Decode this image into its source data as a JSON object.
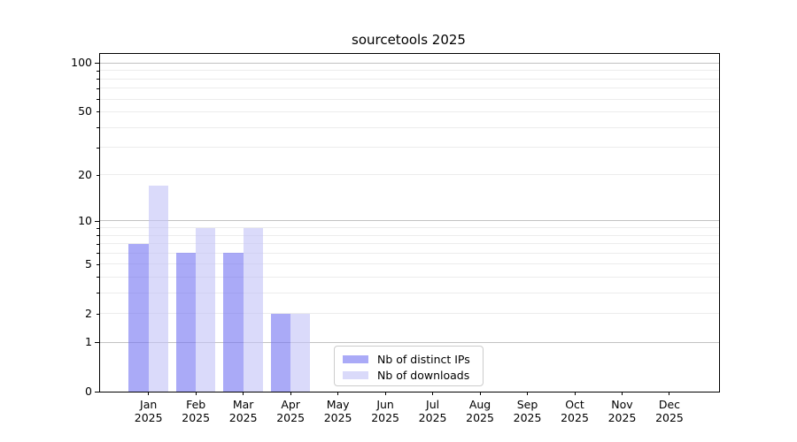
{
  "title": "sourcetools 2025",
  "chart_data": {
    "type": "bar",
    "title": "sourcetools 2025",
    "year": "2025",
    "categories": [
      "Jan",
      "Feb",
      "Mar",
      "Apr",
      "May",
      "Jun",
      "Jul",
      "Aug",
      "Sep",
      "Oct",
      "Nov",
      "Dec"
    ],
    "x_tick_labels": [
      "Jan 2025",
      "Feb 2025",
      "Mar 2025",
      "Apr 2025",
      "May 2025",
      "Jun 2025",
      "Jul 2025",
      "Aug 2025",
      "Sep 2025",
      "Oct 2025",
      "Nov 2025",
      "Dec 2025"
    ],
    "series": [
      {
        "name": "Nb of distinct IPs",
        "color": "#7171f2",
        "alpha": 0.6,
        "color_solid_equivalent": "#a9a9f7",
        "values": [
          7,
          6,
          6,
          2,
          0,
          0,
          0,
          0,
          0,
          0,
          0,
          0
        ]
      },
      {
        "name": "Nb of downloads",
        "color": "#c1c1f7",
        "alpha": 0.6,
        "color_solid_equivalent": "#dadaf9",
        "values": [
          17,
          9,
          9,
          2,
          0,
          0,
          0,
          0,
          0,
          0,
          0,
          0
        ]
      }
    ],
    "xlabel": "",
    "ylabel": "",
    "yscale": "log1p",
    "ylim": [
      0,
      114
    ],
    "y_tick_labels": [
      100,
      50,
      20,
      10,
      5,
      2,
      1,
      0
    ],
    "y_major_gridlines": [
      1,
      10,
      100
    ],
    "y_minor_gridlines": [
      2,
      3,
      4,
      5,
      6,
      7,
      8,
      9,
      20,
      30,
      40,
      50,
      60,
      70,
      80,
      90
    ],
    "grid": "horizontal",
    "legend_position": "lower center"
  },
  "colors": {
    "axis": "#000000",
    "grid_major": "#c2c2c2",
    "grid_minor": "#ececec",
    "legend_border": "#cccccc",
    "background": "#ffffff"
  }
}
